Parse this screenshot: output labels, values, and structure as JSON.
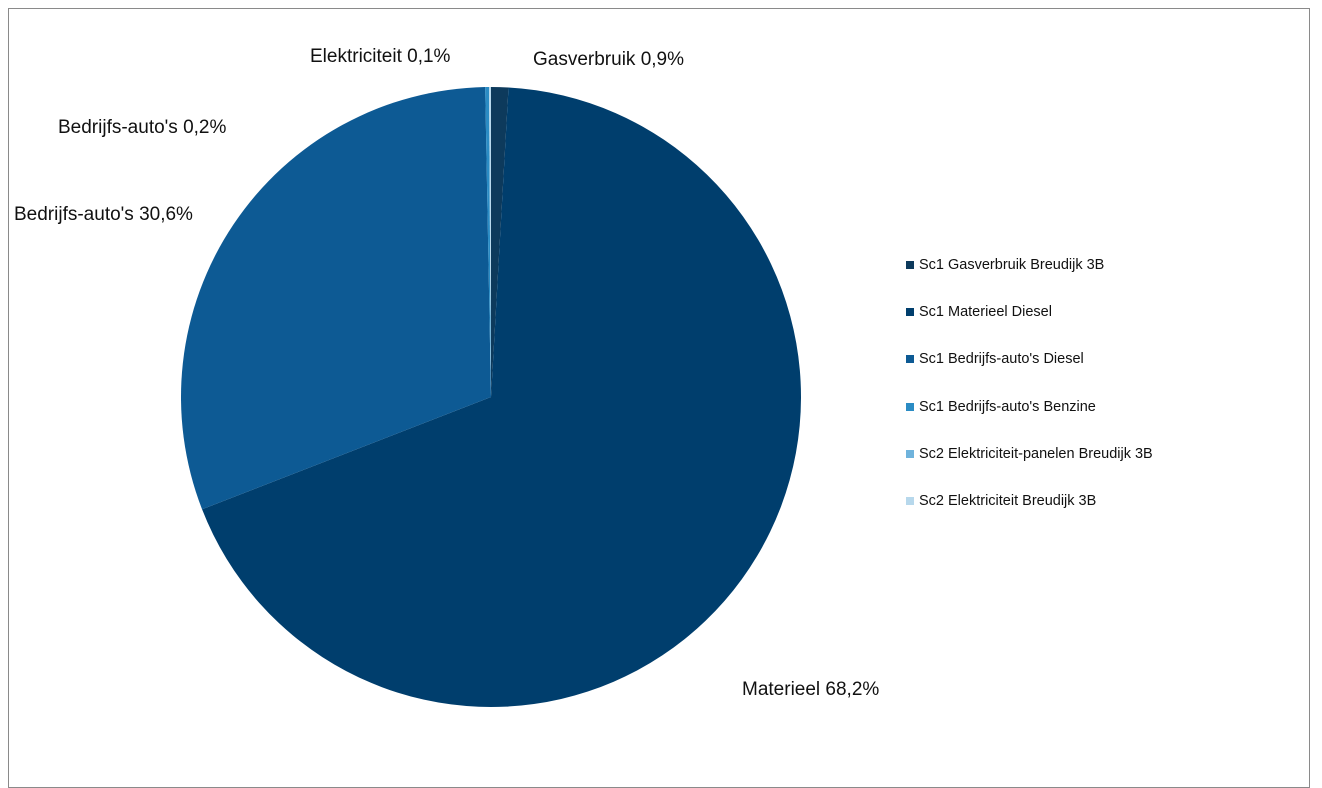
{
  "chart_data": {
    "type": "pie",
    "title": "",
    "slices": [
      {
        "name": "Sc1 Gasverbruik Breudijk 3B",
        "value": 0.9,
        "color": "#0d3a5c"
      },
      {
        "name": "Sc1 Materieel Diesel",
        "value": 68.2,
        "color": "#003e6d"
      },
      {
        "name": "Sc1 Bedrijfs-auto's Diesel",
        "value": 30.6,
        "color": "#0d5a94"
      },
      {
        "name": "Sc1 Bedrijfs-auto's Benzine",
        "value": 0.2,
        "color": "#2b8cc4"
      },
      {
        "name": "Sc2 Elektriciteit-panelen Breudijk 3B",
        "value": 0.0,
        "color": "#6fb3dc"
      },
      {
        "name": "Sc2 Elektriciteit Breudijk 3B",
        "value": 0.1,
        "color": "#b7d8ec"
      }
    ],
    "data_labels": [
      "Gasverbruik 0,9%",
      "Materieel 68,2%",
      "Bedrijfs-auto's 30,6%",
      "Bedrijfs-auto's 0,2%",
      "",
      "Elektriciteit 0,1%"
    ],
    "legend_position": "right"
  }
}
